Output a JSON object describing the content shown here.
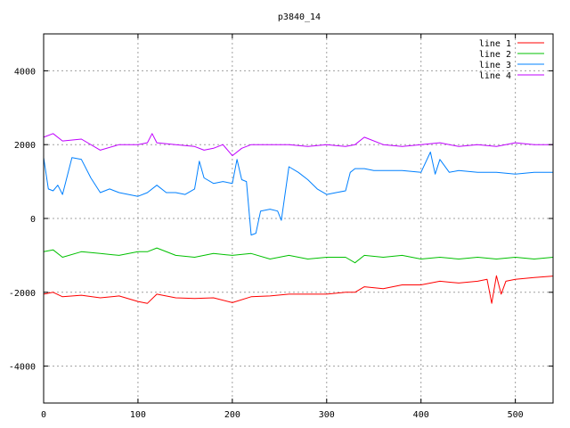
{
  "chart_data": {
    "type": "line",
    "title": "p3840_14",
    "xlabel": "",
    "ylabel": "",
    "xlim": [
      0,
      540
    ],
    "ylim": [
      -5000,
      5000
    ],
    "xticks": [
      0,
      100,
      200,
      300,
      400,
      500
    ],
    "yticks": [
      -4000,
      -2000,
      0,
      2000,
      4000
    ],
    "grid": true,
    "legend_position": "top-right",
    "series": [
      {
        "name": "line 1",
        "color": "#ff0000",
        "x": [
          0,
          10,
          20,
          40,
          60,
          80,
          100,
          110,
          120,
          140,
          160,
          180,
          200,
          220,
          240,
          260,
          280,
          300,
          320,
          330,
          340,
          360,
          380,
          400,
          420,
          440,
          460,
          470,
          475,
          480,
          485,
          490,
          500,
          520,
          540
        ],
        "y": [
          -2050,
          -2000,
          -2120,
          -2080,
          -2150,
          -2100,
          -2250,
          -2300,
          -2050,
          -2150,
          -2170,
          -2150,
          -2280,
          -2120,
          -2100,
          -2050,
          -2050,
          -2050,
          -2000,
          -2000,
          -1850,
          -1900,
          -1800,
          -1800,
          -1700,
          -1750,
          -1700,
          -1650,
          -2300,
          -1550,
          -2050,
          -1700,
          -1650,
          -1600,
          -1560
        ]
      },
      {
        "name": "line 2",
        "color": "#00c000",
        "x": [
          0,
          10,
          20,
          40,
          60,
          80,
          100,
          110,
          120,
          140,
          160,
          180,
          200,
          220,
          240,
          260,
          280,
          300,
          320,
          330,
          340,
          360,
          380,
          400,
          420,
          440,
          460,
          480,
          500,
          520,
          540
        ],
        "y": [
          -900,
          -850,
          -1050,
          -900,
          -950,
          -1000,
          -900,
          -900,
          -800,
          -1000,
          -1050,
          -950,
          -1000,
          -950,
          -1100,
          -1000,
          -1100,
          -1050,
          -1050,
          -1200,
          -1000,
          -1050,
          -1000,
          -1100,
          -1050,
          -1100,
          -1050,
          -1100,
          -1050,
          -1100,
          -1050
        ]
      },
      {
        "name": "line 3",
        "color": "#0080ff",
        "x": [
          0,
          5,
          10,
          15,
          20,
          30,
          40,
          50,
          60,
          70,
          80,
          90,
          100,
          110,
          120,
          130,
          140,
          150,
          160,
          165,
          170,
          180,
          190,
          200,
          205,
          210,
          215,
          220,
          225,
          230,
          240,
          248,
          252,
          260,
          270,
          280,
          290,
          300,
          310,
          320,
          325,
          330,
          340,
          350,
          360,
          380,
          400,
          410,
          415,
          420,
          430,
          440,
          460,
          480,
          500,
          520,
          540
        ],
        "y": [
          1650,
          800,
          750,
          900,
          650,
          1650,
          1600,
          1100,
          700,
          800,
          700,
          650,
          600,
          700,
          900,
          700,
          700,
          650,
          800,
          1550,
          1100,
          950,
          1000,
          950,
          1600,
          1050,
          1000,
          -450,
          -400,
          200,
          250,
          200,
          -50,
          1400,
          1250,
          1050,
          800,
          650,
          700,
          750,
          1250,
          1350,
          1350,
          1300,
          1300,
          1300,
          1250,
          1800,
          1200,
          1600,
          1250,
          1300,
          1250,
          1250,
          1200,
          1250,
          1250
        ]
      },
      {
        "name": "line 4",
        "color": "#c000ff",
        "x": [
          0,
          10,
          20,
          40,
          60,
          80,
          100,
          110,
          115,
          120,
          140,
          160,
          170,
          180,
          190,
          200,
          210,
          220,
          240,
          260,
          280,
          300,
          320,
          330,
          340,
          360,
          380,
          400,
          420,
          440,
          460,
          480,
          500,
          520,
          540
        ],
        "y": [
          2200,
          2300,
          2100,
          2150,
          1850,
          2000,
          2000,
          2050,
          2300,
          2050,
          2000,
          1950,
          1850,
          1900,
          2000,
          1700,
          1900,
          2000,
          2000,
          2000,
          1950,
          2000,
          1950,
          2000,
          2200,
          2000,
          1950,
          2000,
          2050,
          1950,
          2000,
          1950,
          2050,
          2000,
          2000
        ]
      }
    ]
  }
}
